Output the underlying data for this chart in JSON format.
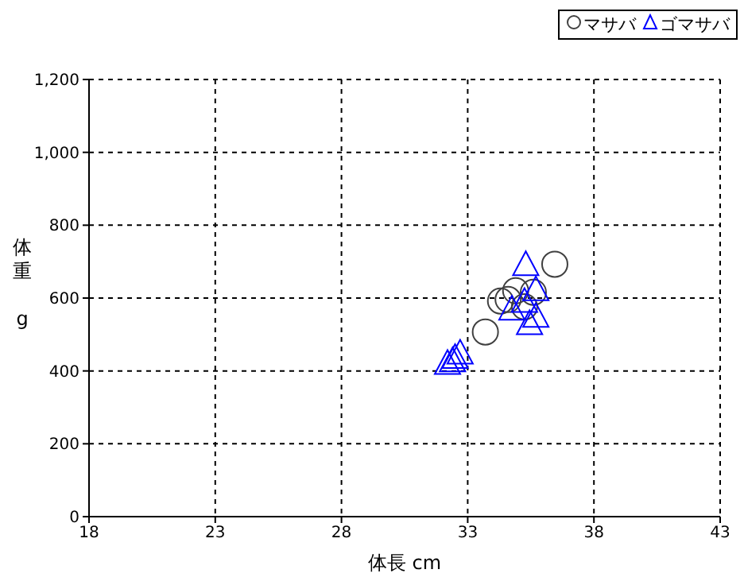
{
  "chart_data": {
    "type": "scatter",
    "xlabel": "体長 cm",
    "ylabel": "体重 g",
    "xlim": [
      18,
      43
    ],
    "xticks": [
      18,
      23,
      28,
      33,
      38,
      43
    ],
    "ylim": [
      0,
      1200
    ],
    "yticks": [
      0,
      200,
      400,
      600,
      800,
      {
        "value": 1000,
        "label": "1,000"
      },
      {
        "value": 1200,
        "label": "1,200"
      }
    ],
    "grid": true,
    "legend": "top right",
    "series": [
      {
        "name": "マサバ",
        "color": "#404040",
        "marker": "circle",
        "x": [
          33.7,
          36.45,
          34.3,
          34.6,
          34.9,
          35.25,
          35.6
        ],
        "values": [
          507,
          693,
          592,
          596,
          620,
          576,
          616
        ]
      },
      {
        "name": "ゴマサバ",
        "color": "#0000ff",
        "marker": "triangle",
        "x": [
          35.3,
          32.2,
          32.4,
          32.5,
          32.7,
          35.7,
          35.7,
          35.25,
          34.75,
          35.45
        ],
        "values": [
          689,
          418,
          425,
          434,
          446,
          547,
          620,
          588,
          567,
          527
        ]
      }
    ]
  }
}
